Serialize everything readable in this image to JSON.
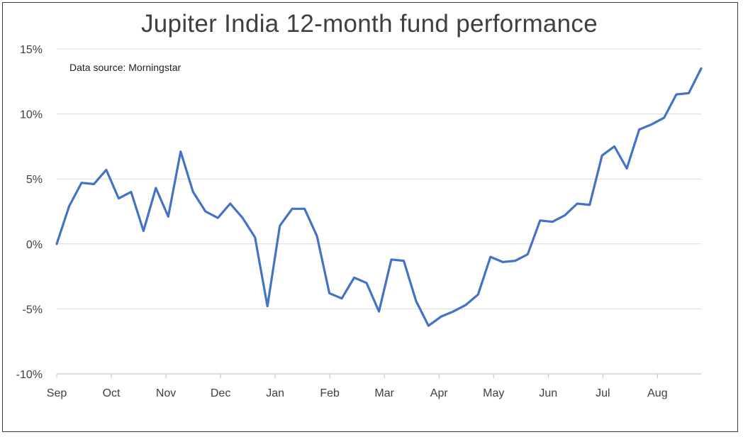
{
  "chart_data": {
    "type": "line",
    "title": "Jupiter India 12-month fund performance",
    "annotation": "Data source: Morningstar",
    "xlabel": "",
    "ylabel": "",
    "ylim": [
      -10,
      15
    ],
    "y_ticks": [
      15,
      10,
      5,
      0,
      -5,
      -10
    ],
    "y_tick_labels": [
      "15%",
      "10%",
      "5%",
      "0%",
      "-5%",
      "-10%"
    ],
    "x_tick_labels": [
      "Sep",
      "Oct",
      "Nov",
      "Dec",
      "Jan",
      "Feb",
      "Mar",
      "Apr",
      "May",
      "Jun",
      "Jul",
      "Aug"
    ],
    "grid": true,
    "legend": "none",
    "line_color": "#4472C4",
    "series": [
      {
        "values": [
          0.0,
          2.9,
          4.7,
          4.6,
          5.7,
          3.5,
          4.0,
          1.0,
          4.3,
          2.1,
          7.1,
          4.0,
          2.5,
          2.0,
          3.1,
          2.0,
          0.5,
          -4.8,
          1.4,
          2.7,
          2.7,
          0.6,
          -3.8,
          -4.2,
          -2.6,
          -3.0,
          -5.2,
          -1.2,
          -1.3,
          -4.4,
          -6.3,
          -5.6,
          -5.2,
          -4.7,
          -3.9,
          -1.0,
          -1.4,
          -1.3,
          -0.8,
          1.8,
          1.7,
          2.2,
          3.1,
          3.0,
          6.8,
          7.5,
          5.8,
          8.8,
          9.2,
          9.7,
          11.5,
          11.6,
          13.5
        ]
      }
    ]
  }
}
